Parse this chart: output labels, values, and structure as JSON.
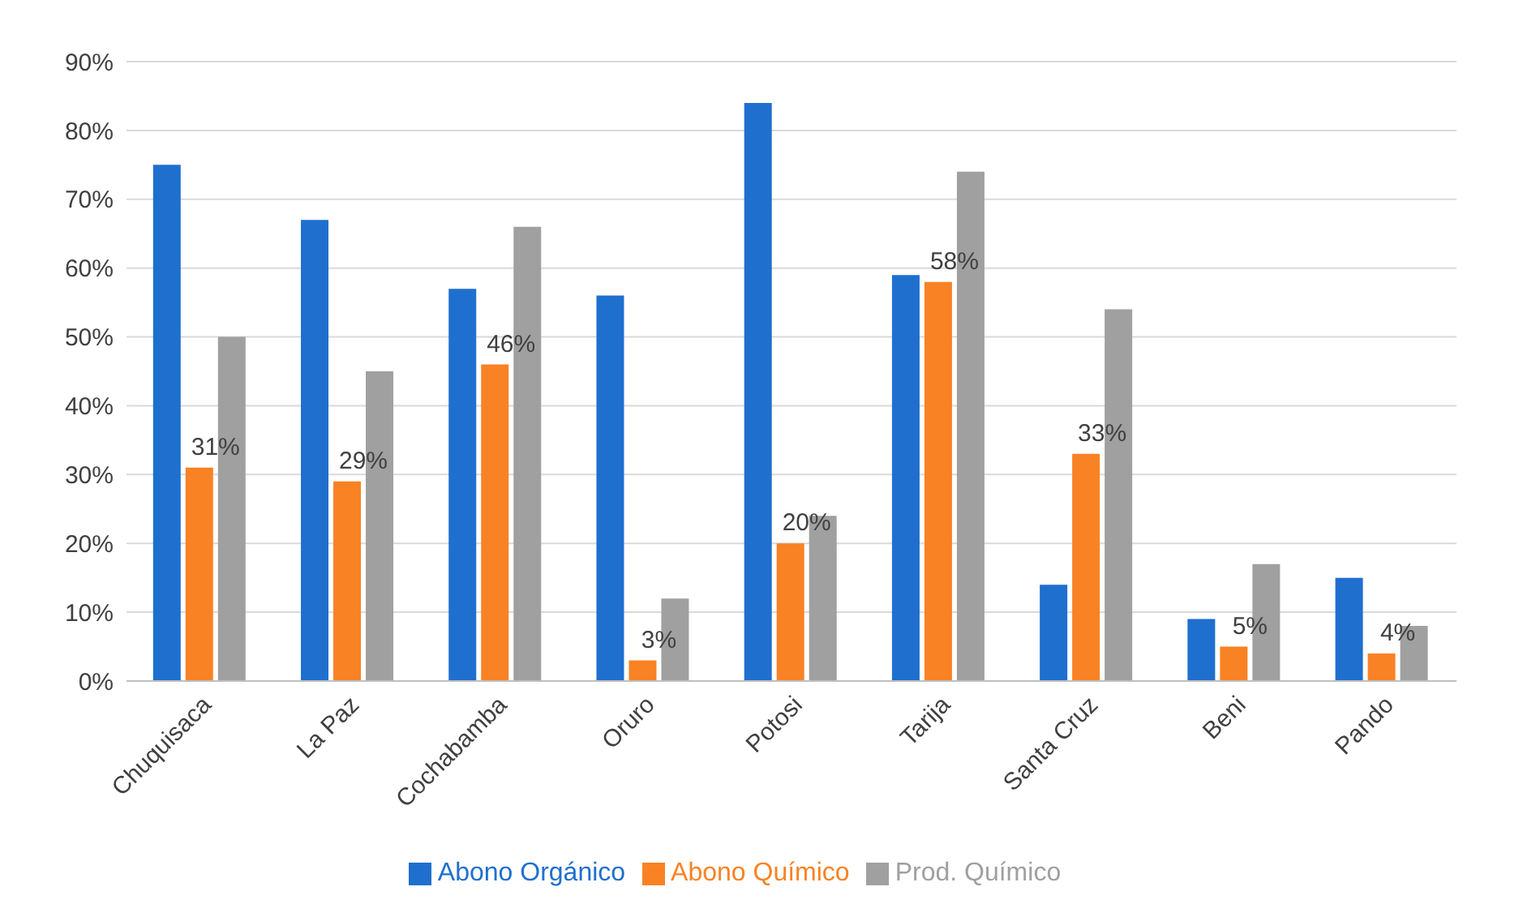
{
  "chart_data": {
    "type": "bar",
    "categories": [
      "Chuquisaca",
      "La Paz",
      "Cochabamba",
      "Oruro",
      "Potosi",
      "Tarija",
      "Santa Cruz",
      "Beni",
      "Pando"
    ],
    "series": [
      {
        "name": "Abono Orgánico",
        "color": "#1f6fcf",
        "values": [
          75,
          67,
          57,
          56,
          84,
          59,
          14,
          9,
          15
        ]
      },
      {
        "name": "Abono Químico",
        "color": "#f98224",
        "values": [
          31,
          29,
          46,
          3,
          20,
          58,
          33,
          5,
          4
        ],
        "value_labels": [
          "31%",
          "29%",
          "46%",
          "3%",
          "20%",
          "58%",
          "33%",
          "5%",
          "4%"
        ]
      },
      {
        "name": "Prod. Químico",
        "color": "#a0a0a0",
        "values": [
          50,
          45,
          66,
          12,
          24,
          74,
          54,
          17,
          8
        ]
      }
    ],
    "ylim": [
      0,
      90
    ],
    "yticks": [
      {
        "value": 0,
        "label": "0%"
      },
      {
        "value": 10,
        "label": "10%"
      },
      {
        "value": 20,
        "label": "20%"
      },
      {
        "value": 30,
        "label": "30%"
      },
      {
        "value": 40,
        "label": "40%"
      },
      {
        "value": 50,
        "label": "50%"
      },
      {
        "value": 60,
        "label": "60%"
      },
      {
        "value": 70,
        "label": "70%"
      },
      {
        "value": 80,
        "label": "80%"
      },
      {
        "value": 90,
        "label": "90%"
      }
    ],
    "grid": "y",
    "legend": "bottom"
  }
}
